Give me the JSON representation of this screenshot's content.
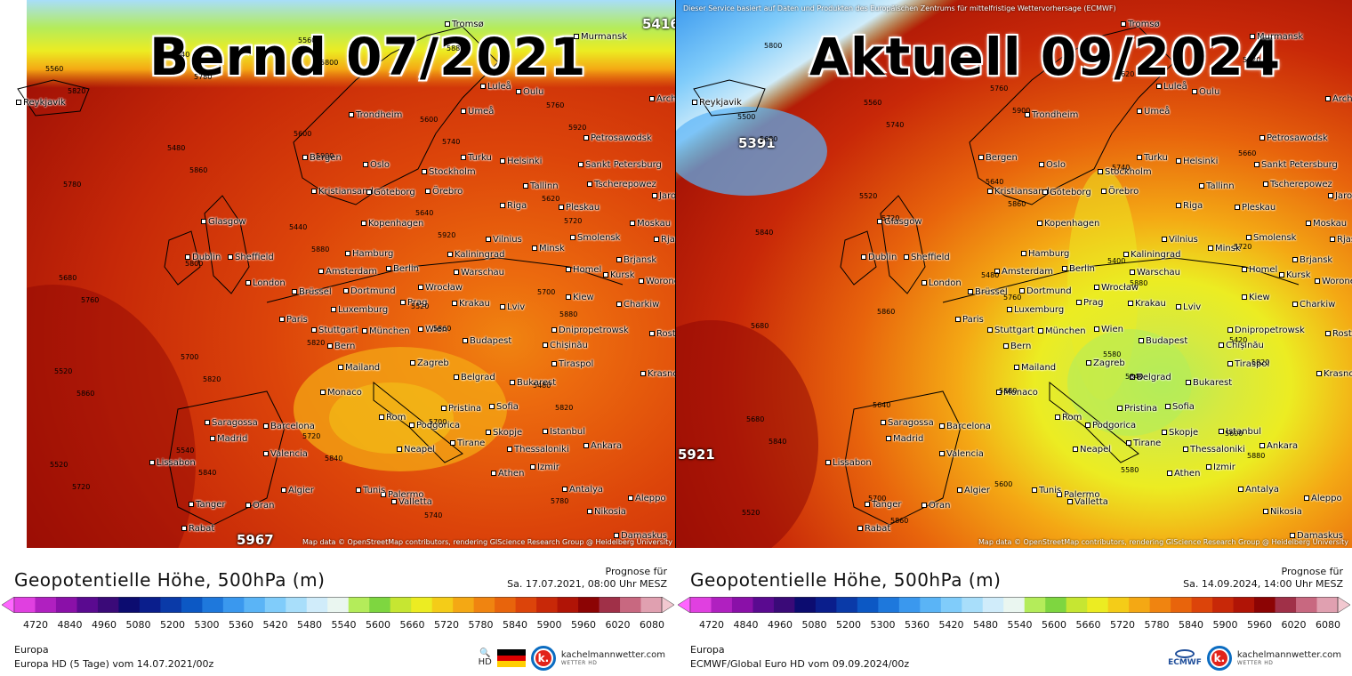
{
  "panels": [
    {
      "overlay_title": "Bernd 07/2021",
      "ecmwf_note": "",
      "map": {
        "extremes": [
          "5416",
          "5967"
        ],
        "credits": "Map data © OpenStreetMap contributors, rendering GIScience Research Group @ Heidelberg University",
        "contour_labels": [
          "5560",
          "5480",
          "5440",
          "5520",
          "5480",
          "5520",
          "5640",
          "5600",
          "5640",
          "5700",
          "5520",
          "5540",
          "5560",
          "5600",
          "5620",
          "5680",
          "5700",
          "5720",
          "5740",
          "5760",
          "5780",
          "5800",
          "5820",
          "5700",
          "5780",
          "5820",
          "5860",
          "5880",
          "5860",
          "5820",
          "5720",
          "5780",
          "5900",
          "5920",
          "5880",
          "5860",
          "5840",
          "5800",
          "5740",
          "5720",
          "5760",
          "5820",
          "5840",
          "5880",
          "5920"
        ],
        "cities": [
          "Tromsø",
          "Murmansk",
          "Reykjavik",
          "Luleå",
          "Oulu",
          "Arch",
          "Trondheim",
          "Umeå",
          "Petrosawodsk",
          "Bergen",
          "Oslo",
          "Turku",
          "Helsinki",
          "Sankt Petersburg",
          "Stockholm",
          "Tallinn",
          "Tscherepowez",
          "Kristiansand",
          "Göteborg",
          "Örebro",
          "Jaros",
          "Glasgow",
          "Kopenhagen",
          "Riga",
          "Pleskau",
          "Moskau",
          "Vilnius",
          "Smolensk",
          "Rjas",
          "Dublin",
          "Sheffield",
          "Hamburg",
          "Minsk",
          "Kaliningrad",
          "Brjansk",
          "Amsterdam",
          "Berlin",
          "Warschau",
          "Homel",
          "Kursk",
          "London",
          "Brüssel",
          "Dortmund",
          "Wrocław",
          "Woronesch",
          "Prag",
          "Kiew",
          "Krakau",
          "Charkiw",
          "Paris",
          "Luxemburg",
          "Lviv",
          "Stuttgart",
          "München",
          "Wien",
          "Dnipropetrowsk",
          "Bern",
          "Budapest",
          "Chișinău",
          "Rostow",
          "Zagreb",
          "Mailand",
          "Tiraspol",
          "Belgrad",
          "Krasnodar",
          "Bukarest",
          "Monaco",
          "Sofia",
          "Pristina",
          "Rom",
          "Saragossa",
          "Barcelona",
          "Istanbul",
          "Podgorica",
          "Madrid",
          "Skopje",
          "Tirane",
          "Ankara",
          "Thessaloniki",
          "Neapel",
          "Valencia",
          "Lissabon",
          "Izmir",
          "Athen",
          "Palermo",
          "Algier",
          "Tunis",
          "Antalya",
          "Aleppo",
          "Tanger",
          "Oran",
          "Valletta",
          "Nikosia",
          "Rabat",
          "Damaskus"
        ]
      },
      "footer": {
        "title": "Geopotentielle Höhe, 500hPa (m)",
        "prognose_label": "Prognose für",
        "prognose_date": "Sa. 17.07.2021, 08:00 Uhr MESZ",
        "region": "Europa",
        "model": "Europa HD (5 Tage) vom 14.07.2021/00z",
        "hd_label": "HD",
        "brand_name": "kachelmannwetter.com",
        "brand_sub": "WETTER HD",
        "k_letter": "k.",
        "ecmwf_label": ""
      }
    },
    {
      "overlay_title": "Aktuell 09/2024",
      "ecmwf_note": "Dieser Service basiert auf Daten und Produkten des Europäischen Zentrums für mittelfristige Wettervorhersage (ECMWF)",
      "map": {
        "extremes": [
          "5391",
          "5921"
        ],
        "credits": "Map data © OpenStreetMap contributors, rendering GIScience Research Group @ Heidelberg University",
        "contour_labels": [
          "5500",
          "5520",
          "5480",
          "5580",
          "5600",
          "5520",
          "5560",
          "5640",
          "5400",
          "5420",
          "5680",
          "5700",
          "5760",
          "5740",
          "5720",
          "5680",
          "5640",
          "5600",
          "5620",
          "5660",
          "5840",
          "5860",
          "5880",
          "5580",
          "5620",
          "5680",
          "5720",
          "5760",
          "5840",
          "5880",
          "5800",
          "5740",
          "5860",
          "5880",
          "5820",
          "5840",
          "5860",
          "5900"
        ],
        "cities": [
          "Tromsø",
          "Murmansk",
          "Reykjavik",
          "Luleå",
          "Oulu",
          "Arch",
          "Trondheim",
          "Umeå",
          "Petrosawodsk",
          "Bergen",
          "Oslo",
          "Turku",
          "Helsinki",
          "Sankt Petersburg",
          "Stockholm",
          "Tallinn",
          "Tscherepowez",
          "Kristiansand",
          "Göteborg",
          "Örebro",
          "Jaros",
          "Glasgow",
          "Kopenhagen",
          "Riga",
          "Pleskau",
          "Moskau",
          "Vilnius",
          "Smolensk",
          "Rjas",
          "Dublin",
          "Sheffield",
          "Hamburg",
          "Minsk",
          "Kaliningrad",
          "Brjansk",
          "Amsterdam",
          "Berlin",
          "Warschau",
          "Homel",
          "Kursk",
          "London",
          "Brüssel",
          "Dortmund",
          "Wrocław",
          "Woronesch",
          "Prag",
          "Kiew",
          "Krakau",
          "Charkiw",
          "Paris",
          "Luxemburg",
          "Lviv",
          "Stuttgart",
          "München",
          "Wien",
          "Dnipropetrowsk",
          "Bern",
          "Budapest",
          "Chișinău",
          "Rostow",
          "Zagreb",
          "Mailand",
          "Tiraspol",
          "Belgrad",
          "Krasnodar",
          "Bukarest",
          "Monaco",
          "Sofia",
          "Pristina",
          "Rom",
          "Saragossa",
          "Barcelona",
          "Istanbul",
          "Podgorica",
          "Madrid",
          "Skopje",
          "Tirane",
          "Ankara",
          "Thessaloniki",
          "Neapel",
          "Valencia",
          "Lissabon",
          "Izmir",
          "Athen",
          "Palermo",
          "Algier",
          "Tunis",
          "Antalya",
          "Aleppo",
          "Tanger",
          "Oran",
          "Valletta",
          "Nikosia",
          "Rabat",
          "Damaskus"
        ]
      },
      "footer": {
        "title": "Geopotentielle Höhe, 500hPa (m)",
        "prognose_label": "Prognose für",
        "prognose_date": "Sa. 14.09.2024, 14:00 Uhr MESZ",
        "region": "Europa",
        "model": "ECMWF/Global Euro HD vom 09.09.2024/00z",
        "hd_label": "",
        "brand_name": "kachelmannwetter.com",
        "brand_sub": "WETTER HD",
        "k_letter": "k.",
        "ecmwf_label": "ECMWF"
      }
    }
  ],
  "scale": {
    "ticks": [
      "4720",
      "4840",
      "4960",
      "5080",
      "5200",
      "5300",
      "5360",
      "5420",
      "5480",
      "5540",
      "5600",
      "5660",
      "5720",
      "5780",
      "5840",
      "5900",
      "5960",
      "6020",
      "6080"
    ],
    "colors": [
      "#ff66ff",
      "#e040e0",
      "#b020c0",
      "#8a10a8",
      "#5a0a90",
      "#3a0a78",
      "#0c0c70",
      "#0a1e8c",
      "#0a3aa8",
      "#0c58c4",
      "#1e78dc",
      "#3a98ee",
      "#5ab4f6",
      "#80ccfa",
      "#a8defa",
      "#d0ecfa",
      "#eaf6f0",
      "#b4ec5a",
      "#7ed640",
      "#c6e632",
      "#ecec22",
      "#f4cc18",
      "#f4a814",
      "#f08410",
      "#e8640c",
      "#dc440a",
      "#c82808",
      "#b01406",
      "#8c0404",
      "#a03048",
      "#c86880",
      "#e0a0b0",
      "#f2c8d0"
    ],
    "zoom_state": "collapsed"
  },
  "flag_colors": [
    "#000000",
    "#dd0000",
    "#ffce00"
  ]
}
